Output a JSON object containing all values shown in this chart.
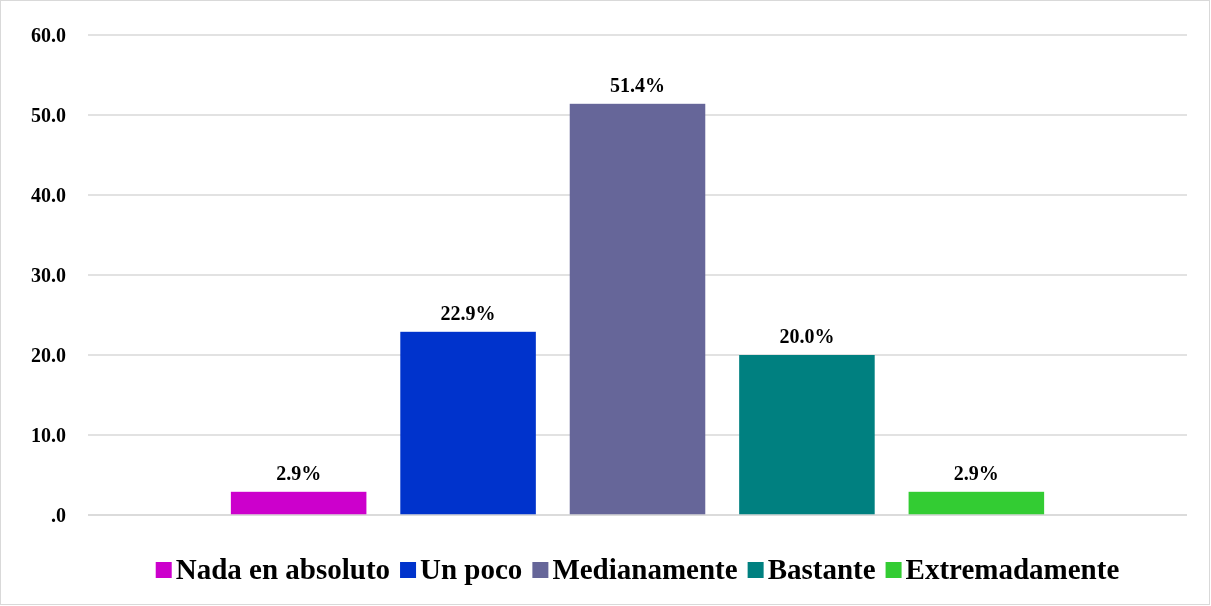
{
  "chart_data": {
    "type": "bar",
    "categories": [
      null
    ],
    "series": [
      {
        "name": "Nada en absoluto",
        "color": "#cc00cc",
        "values": [
          2.9
        ],
        "value_labels": [
          "2.9%"
        ]
      },
      {
        "name": "Un poco",
        "color": "#0033cc",
        "values": [
          22.9
        ],
        "value_labels": [
          "22.9%"
        ]
      },
      {
        "name": "Medianamente",
        "color": "#666699",
        "values": [
          51.4
        ],
        "value_labels": [
          "51.4%"
        ]
      },
      {
        "name": "Bastante",
        "color": "#008080",
        "values": [
          20.0
        ],
        "value_labels": [
          "20.0%"
        ]
      },
      {
        "name": "Extremadamente",
        "color": "#33cc33",
        "values": [
          2.9
        ],
        "value_labels": [
          "2.9%"
        ]
      }
    ],
    "ylim": [
      0,
      60
    ],
    "yticks": [
      {
        "value": 0,
        "label": ".0"
      },
      {
        "value": 10,
        "label": "10.0"
      },
      {
        "value": 20,
        "label": "20.0"
      },
      {
        "value": 30,
        "label": "30.0"
      },
      {
        "value": 40,
        "label": "40.0"
      },
      {
        "value": 50,
        "label": "50.0"
      },
      {
        "value": 60,
        "label": "60.0"
      }
    ],
    "grid": "y",
    "legend": "bottom"
  }
}
